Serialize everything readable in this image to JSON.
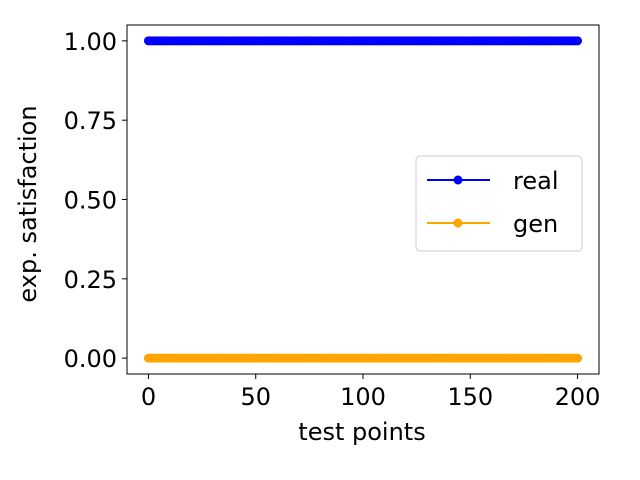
{
  "chart_data": {
    "type": "line",
    "xlabel": "test points",
    "ylabel": "exp. satisfaction",
    "xlim": [
      -10,
      210
    ],
    "ylim": [
      -0.05,
      1.05
    ],
    "x_ticks": [
      0,
      50,
      100,
      150,
      200
    ],
    "x_tick_labels": [
      "0",
      "50",
      "100",
      "150",
      "200"
    ],
    "y_ticks": [
      0.0,
      0.25,
      0.5,
      0.75,
      1.0
    ],
    "y_tick_labels": [
      "0.00",
      "0.25",
      "0.50",
      "0.75",
      "1.00"
    ],
    "grid": false,
    "legend_position": "center-right",
    "x": [
      0,
      200
    ],
    "series": [
      {
        "name": "real",
        "color": "#0000ff",
        "marker": "circle",
        "values": [
          1.0,
          1.0
        ]
      },
      {
        "name": "gen",
        "color": "#ffa500",
        "marker": "circle",
        "values": [
          0.0,
          0.0
        ]
      }
    ]
  }
}
